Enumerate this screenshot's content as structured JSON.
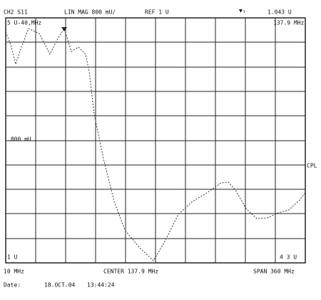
{
  "header": {
    "channel": "CH2 S11",
    "format": "LIN MAG 800 mU/",
    "reference": "REF 1 U",
    "marker_symbol": "▼₁",
    "marker_value": "1.043 U",
    "marker_freq": "137.9 MHz"
  },
  "annotations": {
    "top_left": "5 U-40,MHz",
    "mid_left": ".800 mU",
    "bottom_left": "1 U",
    "bottom_right": "4 3 U",
    "coupling": "CPL"
  },
  "footer": {
    "start": "10 MHz",
    "center": "CENTER 137.9 MHz",
    "span": "SPAN 360 MHz"
  },
  "date": {
    "label": "Date:",
    "day": "18.OCT.04",
    "time": "13:44:24"
  }
}
